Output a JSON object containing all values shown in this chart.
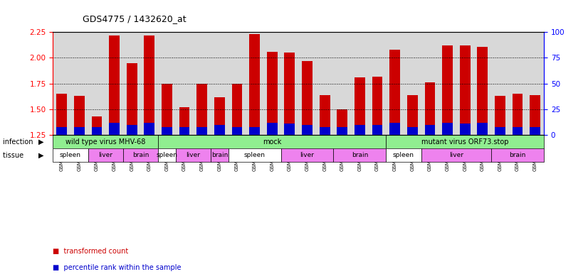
{
  "title": "GDS4775 / 1432620_at",
  "samples": [
    "GSM1243471",
    "GSM1243472",
    "GSM1243473",
    "GSM1243462",
    "GSM1243463",
    "GSM1243464",
    "GSM1243480",
    "GSM1243481",
    "GSM1243482",
    "GSM1243468",
    "GSM1243469",
    "GSM1243470",
    "GSM1243458",
    "GSM1243459",
    "GSM1243460",
    "GSM1243461",
    "GSM1243477",
    "GSM1243478",
    "GSM1243479",
    "GSM1243474",
    "GSM1243475",
    "GSM1243476",
    "GSM1243465",
    "GSM1243466",
    "GSM1243467",
    "GSM1243483",
    "GSM1243484",
    "GSM1243485"
  ],
  "transformed_count": [
    1.65,
    1.63,
    1.43,
    2.22,
    1.95,
    2.22,
    1.75,
    1.52,
    1.75,
    1.62,
    1.75,
    2.23,
    2.06,
    2.05,
    1.97,
    1.64,
    1.5,
    1.81,
    1.82,
    2.08,
    1.64,
    1.76,
    2.12,
    2.12,
    2.11,
    1.63,
    1.65,
    1.64
  ],
  "percentile_rank": [
    8,
    8,
    8,
    12,
    10,
    12,
    8,
    8,
    8,
    10,
    8,
    8,
    12,
    11,
    10,
    8,
    8,
    10,
    10,
    12,
    8,
    10,
    12,
    11,
    12,
    8,
    8,
    8
  ],
  "infection_groups": [
    {
      "label": "wild type virus MHV-68",
      "start": 0,
      "end": 6,
      "color": "#90ee90"
    },
    {
      "label": "mock",
      "start": 6,
      "end": 19,
      "color": "#90ee90"
    },
    {
      "label": "mutant virus ORF73.stop",
      "start": 19,
      "end": 28,
      "color": "#90ee90"
    }
  ],
  "tissue_groups": [
    {
      "label": "spleen",
      "start": 0,
      "end": 2,
      "color": "#ffffff"
    },
    {
      "label": "liver",
      "start": 2,
      "end": 4,
      "color": "#ee82ee"
    },
    {
      "label": "brain",
      "start": 4,
      "end": 6,
      "color": "#ee82ee"
    },
    {
      "label": "spleen",
      "start": 6,
      "end": 7,
      "color": "#ffffff"
    },
    {
      "label": "liver",
      "start": 7,
      "end": 9,
      "color": "#ee82ee"
    },
    {
      "label": "brain",
      "start": 9,
      "end": 10,
      "color": "#ee82ee"
    },
    {
      "label": "spleen",
      "start": 10,
      "end": 13,
      "color": "#ffffff"
    },
    {
      "label": "liver",
      "start": 13,
      "end": 16,
      "color": "#ee82ee"
    },
    {
      "label": "brain",
      "start": 16,
      "end": 19,
      "color": "#ee82ee"
    },
    {
      "label": "spleen",
      "start": 19,
      "end": 21,
      "color": "#ffffff"
    },
    {
      "label": "liver",
      "start": 21,
      "end": 25,
      "color": "#ee82ee"
    },
    {
      "label": "brain",
      "start": 25,
      "end": 28,
      "color": "#ee82ee"
    }
  ],
  "bar_color": "#cc0000",
  "blue_color": "#0000cc",
  "ylim_left": [
    1.25,
    2.25
  ],
  "ylim_right": [
    0,
    100
  ],
  "yticks_left": [
    1.25,
    1.5,
    1.75,
    2.0,
    2.25
  ],
  "yticks_right": [
    0,
    25,
    50,
    75,
    100
  ],
  "bg_color": "#ffffff",
  "plot_bg_color": "#d8d8d8",
  "bar_width": 0.6
}
